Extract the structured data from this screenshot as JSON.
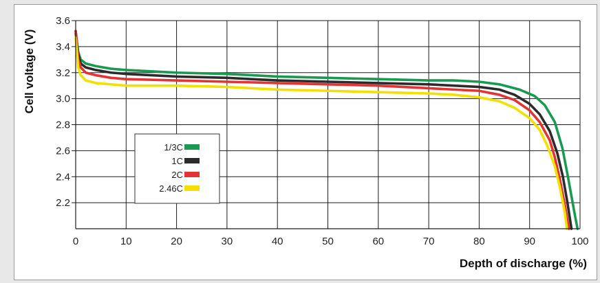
{
  "chart_data": {
    "type": "line",
    "title": "",
    "xlabel": "Depth of discharge (%)",
    "ylabel": "Cell voltage (V)",
    "xlim": [
      0,
      100
    ],
    "ylim": [
      2.0,
      3.6
    ],
    "x_ticks": [
      "0",
      "10",
      "20",
      "30",
      "40",
      "50",
      "60",
      "70",
      "80",
      "90",
      "100"
    ],
    "y_ticks": [
      "2.2",
      "2.4",
      "2.6",
      "2.8",
      "3.0",
      "3.2",
      "3.4",
      "3.6"
    ],
    "grid": true,
    "legend_position": "lower-left",
    "series": [
      {
        "name": "1/3C",
        "color": "#1a9a50",
        "points": [
          [
            0,
            3.5
          ],
          [
            0.5,
            3.36
          ],
          [
            1,
            3.3
          ],
          [
            2,
            3.27
          ],
          [
            4,
            3.25
          ],
          [
            7,
            3.23
          ],
          [
            10,
            3.22
          ],
          [
            20,
            3.2
          ],
          [
            30,
            3.19
          ],
          [
            40,
            3.17
          ],
          [
            50,
            3.16
          ],
          [
            60,
            3.15
          ],
          [
            70,
            3.14
          ],
          [
            75,
            3.14
          ],
          [
            80,
            3.13
          ],
          [
            84,
            3.11
          ],
          [
            88,
            3.07
          ],
          [
            91,
            3.02
          ],
          [
            93,
            2.95
          ],
          [
            95,
            2.82
          ],
          [
            96.5,
            2.62
          ],
          [
            97.5,
            2.42
          ],
          [
            98.3,
            2.25
          ],
          [
            99,
            2.1
          ],
          [
            99.5,
            2.0
          ]
        ]
      },
      {
        "name": "1C",
        "color": "#2b2b2b",
        "points": [
          [
            0,
            3.52
          ],
          [
            0.5,
            3.34
          ],
          [
            1,
            3.27
          ],
          [
            2,
            3.24
          ],
          [
            4,
            3.22
          ],
          [
            7,
            3.2
          ],
          [
            10,
            3.19
          ],
          [
            20,
            3.17
          ],
          [
            30,
            3.16
          ],
          [
            40,
            3.14
          ],
          [
            50,
            3.13
          ],
          [
            60,
            3.12
          ],
          [
            70,
            3.11
          ],
          [
            75,
            3.1
          ],
          [
            80,
            3.09
          ],
          [
            84,
            3.07
          ],
          [
            87,
            3.03
          ],
          [
            90,
            2.96
          ],
          [
            92,
            2.88
          ],
          [
            94,
            2.75
          ],
          [
            95.5,
            2.58
          ],
          [
            96.6,
            2.4
          ],
          [
            97.5,
            2.2
          ],
          [
            98.3,
            2.0
          ]
        ]
      },
      {
        "name": "2C",
        "color": "#e53333",
        "points": [
          [
            0,
            3.52
          ],
          [
            0.5,
            3.3
          ],
          [
            1,
            3.24
          ],
          [
            2,
            3.2
          ],
          [
            4,
            3.18
          ],
          [
            7,
            3.16
          ],
          [
            10,
            3.15
          ],
          [
            20,
            3.14
          ],
          [
            30,
            3.13
          ],
          [
            40,
            3.12
          ],
          [
            50,
            3.11
          ],
          [
            60,
            3.1
          ],
          [
            70,
            3.08
          ],
          [
            75,
            3.07
          ],
          [
            80,
            3.06
          ],
          [
            84,
            3.03
          ],
          [
            87,
            2.99
          ],
          [
            90,
            2.91
          ],
          [
            92,
            2.82
          ],
          [
            94,
            2.68
          ],
          [
            95,
            2.55
          ],
          [
            96,
            2.38
          ],
          [
            97,
            2.18
          ],
          [
            97.8,
            2.0
          ]
        ]
      },
      {
        "name": "2.46C",
        "color": "#f2e100",
        "points": [
          [
            0,
            3.47
          ],
          [
            0.5,
            3.24
          ],
          [
            1,
            3.18
          ],
          [
            2,
            3.14
          ],
          [
            4,
            3.12
          ],
          [
            7,
            3.11
          ],
          [
            10,
            3.1
          ],
          [
            20,
            3.1
          ],
          [
            30,
            3.09
          ],
          [
            40,
            3.07
          ],
          [
            50,
            3.06
          ],
          [
            60,
            3.05
          ],
          [
            70,
            3.04
          ],
          [
            75,
            3.03
          ],
          [
            80,
            3.01
          ],
          [
            84,
            2.98
          ],
          [
            87,
            2.93
          ],
          [
            90,
            2.85
          ],
          [
            92,
            2.76
          ],
          [
            93.5,
            2.64
          ],
          [
            95,
            2.48
          ],
          [
            96,
            2.32
          ],
          [
            97,
            2.12
          ],
          [
            97.4,
            2.0
          ]
        ]
      }
    ]
  }
}
